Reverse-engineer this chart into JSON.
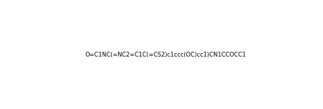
{
  "smiles": "O=C1NC(=NC2=C1C(=CS2)c1ccc(OC)cc1)CN1CCOCC1",
  "title": "",
  "bg_color": "#ffffff",
  "line_color": "#000000",
  "fig_width": 4.65,
  "fig_height": 1.58,
  "dpi": 100
}
